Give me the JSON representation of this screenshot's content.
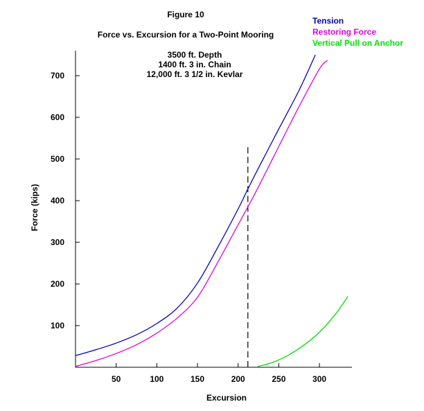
{
  "header": {
    "figure_label": "Figure 10"
  },
  "chart_data": {
    "type": "line",
    "title": "Force vs. Excursion for a Two-Point Mooring",
    "xlabel": "Excursion",
    "ylabel": "Force (kips)",
    "xlim": [
      0,
      340
    ],
    "ylim": [
      0,
      760
    ],
    "x_ticks": [
      50,
      100,
      150,
      200,
      250,
      300
    ],
    "y_ticks": [
      100,
      200,
      300,
      400,
      500,
      600,
      700
    ],
    "grid": false,
    "legend_position": "top-right",
    "annotations": [
      "3500 ft. Depth",
      "1400 ft.  3 in. Chain",
      "12,000 ft.  3 1/2 in. Kevlar"
    ],
    "reference_line": {
      "x": 212,
      "y_range": [
        0,
        535
      ],
      "style": "dashed"
    },
    "series": [
      {
        "name": "Tension",
        "color": "#0000c0",
        "points": [
          [
            0,
            28
          ],
          [
            25,
            42
          ],
          [
            50,
            58
          ],
          [
            75,
            78
          ],
          [
            100,
            105
          ],
          [
            125,
            142
          ],
          [
            150,
            202
          ],
          [
            175,
            288
          ],
          [
            200,
            380
          ],
          [
            212,
            428
          ],
          [
            225,
            478
          ],
          [
            250,
            572
          ],
          [
            275,
            665
          ],
          [
            295,
            750
          ]
        ]
      },
      {
        "name": "Restoring Force",
        "color": "#e000e0",
        "points": [
          [
            0,
            2
          ],
          [
            25,
            16
          ],
          [
            50,
            33
          ],
          [
            75,
            54
          ],
          [
            100,
            82
          ],
          [
            125,
            118
          ],
          [
            150,
            168
          ],
          [
            175,
            252
          ],
          [
            200,
            342
          ],
          [
            212,
            385
          ],
          [
            225,
            433
          ],
          [
            250,
            530
          ],
          [
            275,
            626
          ],
          [
            300,
            716
          ],
          [
            310,
            737
          ]
        ]
      },
      {
        "name": "Vertical Pull on Anchor",
        "color": "#00e000",
        "points": [
          [
            224,
            2
          ],
          [
            240,
            10
          ],
          [
            260,
            27
          ],
          [
            280,
            52
          ],
          [
            300,
            84
          ],
          [
            320,
            128
          ],
          [
            335,
            170
          ]
        ]
      }
    ]
  }
}
